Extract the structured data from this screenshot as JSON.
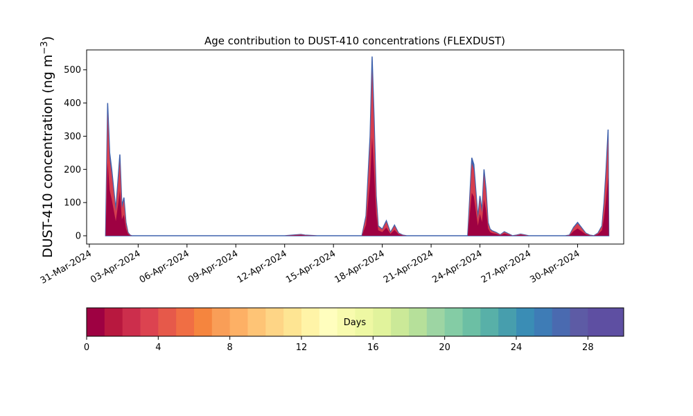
{
  "chart_data": {
    "type": "area",
    "title": "Age contribution to DUST-410 concentrations (FLEXDUST)",
    "ylabel_main": "DUST-410 concentration (ng m",
    "ylabel_sup": "−3",
    "ylabel_close": ")",
    "xlabel": "",
    "ylim": [
      -25,
      560
    ],
    "yticks": [
      0,
      100,
      200,
      300,
      400,
      500
    ],
    "x_range_days": [
      "2024-03-30T20:00",
      "2024-05-02T20:00"
    ],
    "xticks": [
      {
        "date": "2024-03-31",
        "label": "31-Mar-2024"
      },
      {
        "date": "2024-04-03",
        "label": "03-Apr-2024"
      },
      {
        "date": "2024-04-06",
        "label": "06-Apr-2024"
      },
      {
        "date": "2024-04-09",
        "label": "09-Apr-2024"
      },
      {
        "date": "2024-04-12",
        "label": "12-Apr-2024"
      },
      {
        "date": "2024-04-15",
        "label": "15-Apr-2024"
      },
      {
        "date": "2024-04-18",
        "label": "18-Apr-2024"
      },
      {
        "date": "2024-04-21",
        "label": "21-Apr-2024"
      },
      {
        "date": "2024-04-24",
        "label": "24-Apr-2024"
      },
      {
        "date": "2024-04-27",
        "label": "27-Apr-2024"
      },
      {
        "date": "2024-04-30",
        "label": "30-Apr-2024"
      }
    ],
    "series_total": {
      "x": [
        "2024-04-01T00:00",
        "2024-04-01T03:00",
        "2024-04-01T06:00",
        "2024-04-01T09:00",
        "2024-04-01T12:00",
        "2024-04-01T15:00",
        "2024-04-01T18:00",
        "2024-04-01T21:00",
        "2024-04-02T00:00",
        "2024-04-02T03:00",
        "2024-04-02T06:00",
        "2024-04-02T09:00",
        "2024-04-02T12:00",
        "2024-04-02T15:00",
        "2024-04-02T18:00",
        "2024-04-03T00:00",
        "2024-04-04T00:00",
        "2024-04-08T00:00",
        "2024-04-12T00:00",
        "2024-04-13T00:00",
        "2024-04-13T06:00",
        "2024-04-14T00:00",
        "2024-04-16T00:00",
        "2024-04-16T18:00",
        "2024-04-17T00:00",
        "2024-04-17T06:00",
        "2024-04-17T09:00",
        "2024-04-17T12:00",
        "2024-04-17T15:00",
        "2024-04-17T18:00",
        "2024-04-18T00:00",
        "2024-04-18T06:00",
        "2024-04-18T12:00",
        "2024-04-18T18:00",
        "2024-04-19T00:00",
        "2024-04-19T06:00",
        "2024-04-19T12:00",
        "2024-04-20T00:00",
        "2024-04-23T00:00",
        "2024-04-23T06:00",
        "2024-04-23T12:00",
        "2024-04-23T15:00",
        "2024-04-23T21:00",
        "2024-04-24T00:00",
        "2024-04-24T03:00",
        "2024-04-24T06:00",
        "2024-04-24T09:00",
        "2024-04-24T12:00",
        "2024-04-24T15:00",
        "2024-04-24T18:00",
        "2024-04-25T00:00",
        "2024-04-25T06:00",
        "2024-04-25T12:00",
        "2024-04-26T00:00",
        "2024-04-26T06:00",
        "2024-04-26T12:00",
        "2024-04-27T00:00",
        "2024-04-28T00:00",
        "2024-04-29T00:00",
        "2024-04-29T06:00",
        "2024-04-29T12:00",
        "2024-04-29T18:00",
        "2024-04-30T00:00",
        "2024-04-30T12:00",
        "2024-04-30T18:00",
        "2024-05-01T00:00",
        "2024-05-01T06:00",
        "2024-05-01T12:00",
        "2024-05-01T15:00",
        "2024-05-01T18:00",
        "2024-05-01T21:00",
        "2024-05-01T22:00"
      ],
      "y": [
        0,
        400,
        250,
        200,
        140,
        80,
        160,
        245,
        90,
        115,
        40,
        10,
        2,
        0,
        0,
        0,
        0,
        0,
        0,
        4,
        2,
        0,
        0,
        0,
        60,
        300,
        540,
        350,
        120,
        30,
        20,
        45,
        10,
        32,
        8,
        2,
        0,
        0,
        0,
        0,
        235,
        215,
        55,
        120,
        75,
        200,
        140,
        40,
        20,
        15,
        10,
        3,
        12,
        0,
        2,
        5,
        0,
        0,
        0,
        0,
        2,
        25,
        40,
        8,
        2,
        0,
        8,
        30,
        100,
        200,
        320,
        0
      ]
    },
    "colorbar": {
      "label": "Days",
      "ticks": [
        0,
        4,
        8,
        12,
        16,
        20,
        24,
        28
      ],
      "min": 0,
      "max": 30,
      "colors": [
        "#9e0142",
        "#b8183f",
        "#cc2e4c",
        "#dc4350",
        "#e6594a",
        "#f06e44",
        "#f5853e",
        "#f99e57",
        "#fdb065",
        "#fec476",
        "#fed586",
        "#fee593",
        "#fff4a7",
        "#fffebe",
        "#f8fbae",
        "#eef8a3",
        "#e1f39c",
        "#cbe998",
        "#b6e09a",
        "#9dd5a3",
        "#84cca5",
        "#6cbfa4",
        "#58b0a8",
        "#479ead",
        "#3a8db5",
        "#3e7cb6",
        "#4a6ab0",
        "#5d5ba5",
        "#5e4fa2",
        "#5e4fa2"
      ]
    },
    "fill_colors": {
      "base": "#9e0142",
      "mid": "#d53e4f",
      "top": "#3f62ad"
    },
    "grid": false
  }
}
